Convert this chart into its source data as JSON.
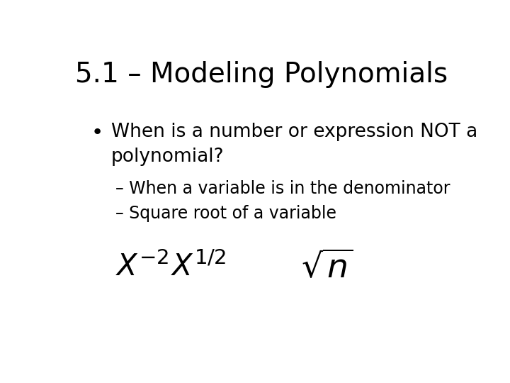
{
  "title": "5.1 – Modeling Polynomials",
  "title_fontsize": 28,
  "title_color": "#000000",
  "background_color": "#ffffff",
  "bullet_text": "When is a number or expression NOT a\npolynomial?",
  "bullet_fontsize": 19,
  "sub_bullet1": "– When a variable is in the denominator",
  "sub_bullet2": "– Square root of a variable",
  "sub_fontsize": 17,
  "math1": "$X^{-2}$",
  "math2": "$X^{1/2}$",
  "math3": "$\\sqrt{n}$",
  "math_fontsize": 30
}
